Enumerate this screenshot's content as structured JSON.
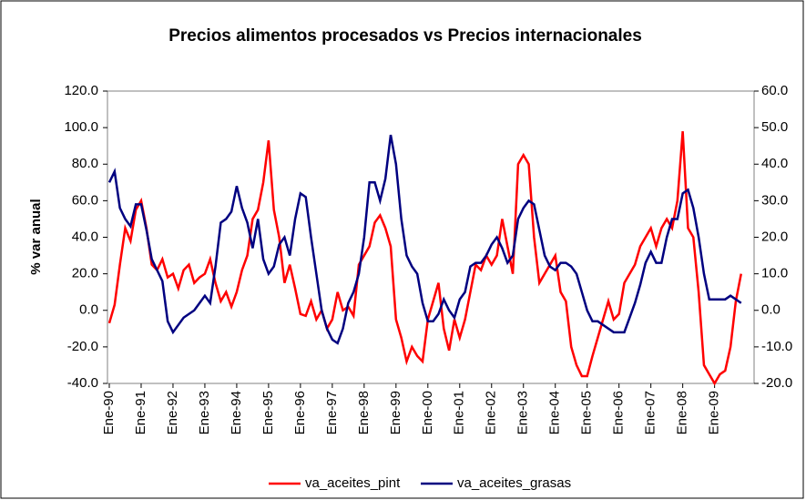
{
  "chart_data": {
    "type": "line",
    "title": "Precios alimentos procesados vs Precios internacionales",
    "y_label": "% var anual",
    "categories": [
      "Ene-90",
      null,
      null,
      null,
      null,
      null,
      "Ene-91",
      null,
      null,
      null,
      null,
      null,
      "Ene-92",
      null,
      null,
      null,
      null,
      null,
      "Ene-93",
      null,
      null,
      null,
      null,
      null,
      "Ene-94",
      null,
      null,
      null,
      null,
      null,
      "Ene-95",
      null,
      null,
      null,
      null,
      null,
      "Ene-96",
      null,
      null,
      null,
      null,
      null,
      "Ene-97",
      null,
      null,
      null,
      null,
      null,
      "Ene-98",
      null,
      null,
      null,
      null,
      null,
      "Ene-99",
      null,
      null,
      null,
      null,
      null,
      "Ene-00",
      null,
      null,
      null,
      null,
      null,
      "Ene-01",
      null,
      null,
      null,
      null,
      null,
      "Ene-02",
      null,
      null,
      null,
      null,
      null,
      "Ene-03",
      null,
      null,
      null,
      null,
      null,
      "Ene-04",
      null,
      null,
      null,
      null,
      null,
      "Ene-05",
      null,
      null,
      null,
      null,
      null,
      "Ene-06",
      null,
      null,
      null,
      null,
      null,
      "Ene-07",
      null,
      null,
      null,
      null,
      null,
      "Ene-08",
      null,
      null,
      null,
      null,
      null,
      "Ene-09",
      null,
      null,
      null,
      null,
      null
    ],
    "series": [
      {
        "name": "va_aceites_pint",
        "color": "#ff0000",
        "axis": "y",
        "values": [
          -7,
          3,
          25,
          45,
          38,
          55,
          60,
          45,
          25,
          22,
          28,
          18,
          20,
          12,
          22,
          25,
          15,
          18,
          20,
          28,
          15,
          5,
          10,
          2,
          10,
          22,
          30,
          50,
          55,
          70,
          93,
          55,
          40,
          15,
          25,
          12,
          -2,
          -3,
          5,
          -5,
          0,
          -10,
          -5,
          10,
          0,
          2,
          -3,
          25,
          30,
          35,
          48,
          52,
          45,
          35,
          -5,
          -15,
          -28,
          -20,
          -25,
          -28,
          -5,
          5,
          15,
          -10,
          -22,
          -5,
          -15,
          -5,
          10,
          25,
          22,
          30,
          25,
          30,
          50,
          35,
          20,
          80,
          85,
          80,
          40,
          15,
          20,
          25,
          30,
          10,
          5,
          -20,
          -30,
          -36,
          -36,
          -25,
          -15,
          -5,
          5,
          -5,
          -2,
          15,
          20,
          25,
          35,
          40,
          45,
          35,
          45,
          50,
          45,
          60,
          98,
          45,
          40,
          10,
          -30,
          -35,
          -40,
          -35,
          -33,
          -20,
          5,
          20
        ]
      },
      {
        "name": "va_aceites_grasas",
        "color": "#000080",
        "axis": "y2",
        "values": [
          35,
          38,
          28,
          25,
          23,
          29,
          29,
          22,
          14,
          11,
          8,
          -3,
          -6,
          -4,
          -2,
          -1,
          0,
          2,
          4,
          2,
          12,
          24,
          25,
          27,
          34,
          28,
          24,
          17,
          25,
          14,
          10,
          12,
          18,
          20,
          15,
          25,
          32,
          31,
          20,
          10,
          0,
          -5,
          -8,
          -9,
          -5,
          2,
          5,
          10,
          20,
          35,
          35,
          30,
          36,
          48,
          40,
          25,
          15,
          12,
          10,
          2,
          -3,
          -3,
          -1,
          3,
          0,
          -2,
          3,
          5,
          12,
          13,
          13,
          15,
          18,
          20,
          17,
          13,
          15,
          25,
          28,
          30,
          29,
          22,
          15,
          12,
          11,
          13,
          13,
          12,
          10,
          5,
          0,
          -3,
          -3,
          -4,
          -5,
          -6,
          -6,
          -6,
          -2,
          2,
          7,
          13,
          16,
          13,
          13,
          20,
          25,
          25,
          32,
          33,
          28,
          20,
          10,
          3,
          3,
          3,
          3,
          4,
          3,
          2
        ]
      }
    ],
    "ylim": [
      -40,
      120
    ],
    "yticks": [
      {
        "value": -40,
        "label": "-40.0"
      },
      {
        "value": -20,
        "label": "-20.0"
      },
      {
        "value": 0,
        "label": "0.0"
      },
      {
        "value": 20,
        "label": "20.0"
      },
      {
        "value": 40,
        "label": "40.0"
      },
      {
        "value": 60,
        "label": "60.0"
      },
      {
        "value": 80,
        "label": "80.0"
      },
      {
        "value": 100,
        "label": "100.0"
      },
      {
        "value": 120,
        "label": "120.0"
      }
    ],
    "y2lim": [
      -20,
      60
    ],
    "y2ticks": [
      {
        "value": -20,
        "label": "-20.0"
      },
      {
        "value": -10,
        "label": "-10.0"
      },
      {
        "value": 0,
        "label": "0.0"
      },
      {
        "value": 10,
        "label": "10.0"
      },
      {
        "value": 20,
        "label": "20.0"
      },
      {
        "value": 30,
        "label": "30.0"
      },
      {
        "value": 40,
        "label": "40.0"
      },
      {
        "value": 50,
        "label": "50.0"
      },
      {
        "value": 60,
        "label": "60.0"
      }
    ],
    "legend": "bottom"
  }
}
